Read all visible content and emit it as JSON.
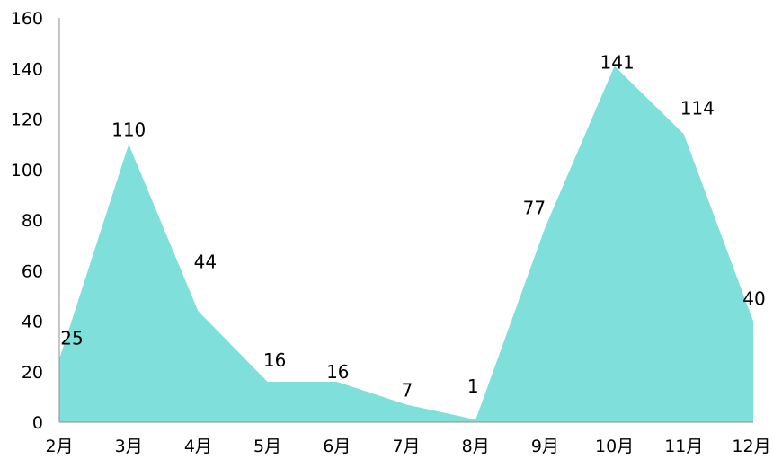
{
  "chart_data": {
    "type": "area",
    "title": "",
    "xlabel": "",
    "ylabel": "",
    "categories": [
      "2月",
      "3月",
      "4月",
      "5月",
      "6月",
      "7月",
      "8月",
      "9月",
      "10月",
      "11月",
      "12月"
    ],
    "values": [
      25,
      110,
      44,
      16,
      16,
      7,
      1,
      77,
      141,
      114,
      40
    ],
    "ylim": [
      0,
      160
    ],
    "yticks": [
      "0",
      "20",
      "40",
      "60",
      "80",
      "100",
      "120",
      "140",
      "160"
    ],
    "grid": false,
    "legend": "none",
    "colors": {
      "area": "#7fdfdb",
      "axis": "#8c8c8c",
      "text": "#000000"
    }
  }
}
